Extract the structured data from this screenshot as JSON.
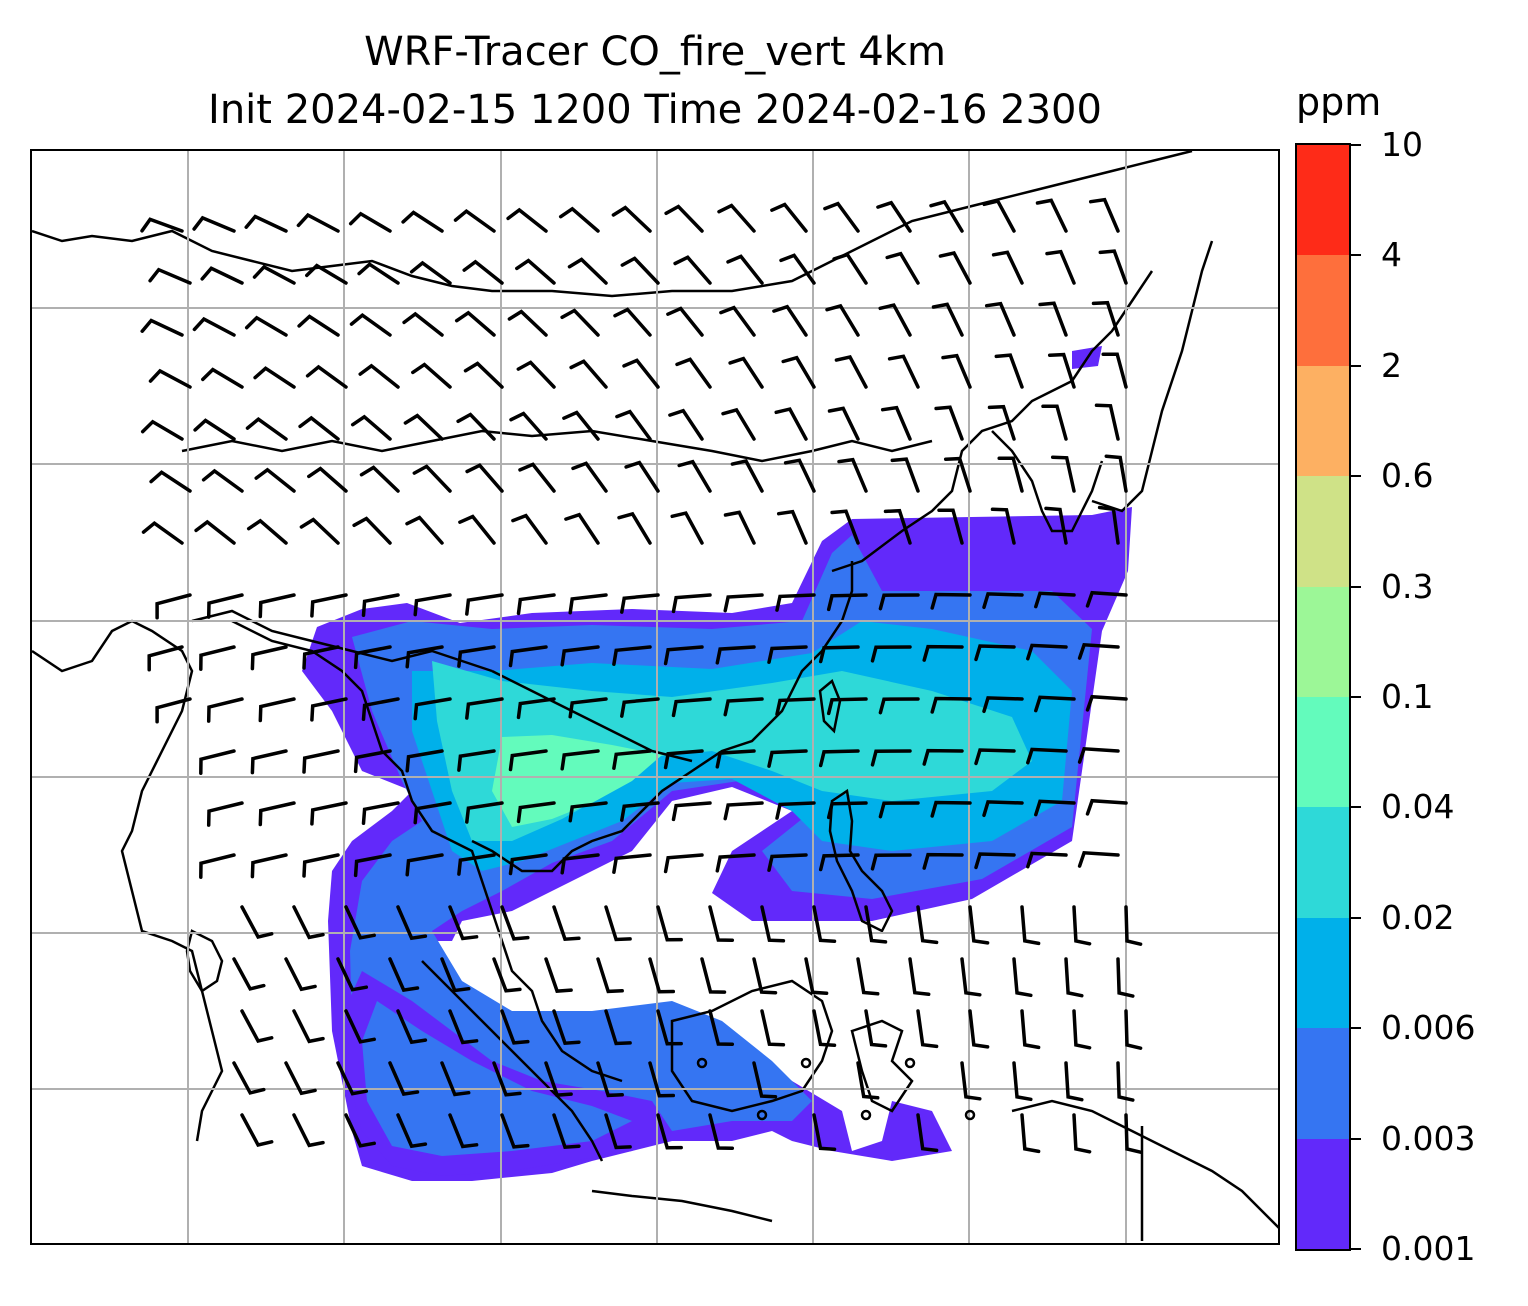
{
  "title": {
    "line1": "WRF-Tracer CO_fire_vert 4km",
    "line2": "Init 2024-02-15 1200 Time 2024-02-16 2300"
  },
  "colorbar": {
    "unit": "ppm",
    "levels": [
      "0.001",
      "0.003",
      "0.006",
      "0.02",
      "0.04",
      "0.1",
      "0.3",
      "0.6",
      "2",
      "4",
      "10"
    ],
    "colors": [
      "#6229fa",
      "#3575f2",
      "#00b0ea",
      "#2ed9d8",
      "#63fbbc",
      "#9cf797",
      "#cfe287",
      "#fdb062",
      "#fe6f3c",
      "#fe2b18"
    ]
  },
  "map": {
    "gridlines": true,
    "coastline_color": "#000000",
    "gridline_color": "#b0b0b0",
    "overlay": "wind barbs"
  }
}
